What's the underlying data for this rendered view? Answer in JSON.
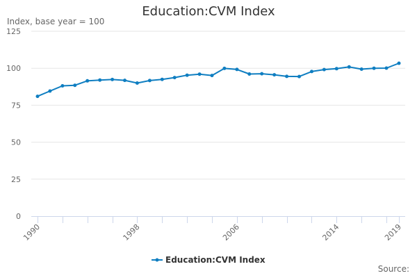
{
  "title": "Education:CVM Index",
  "y_axis_title": "Index, base year = 100",
  "source_label": "Source:",
  "legend": [
    {
      "label": "Education:CVM Index",
      "color": "#0f7ec1"
    }
  ],
  "colors": {
    "series": "#0f7ec1",
    "grid": "#e6e6e6",
    "axis": "#ccd6eb",
    "text": "#666666",
    "title": "#333333"
  },
  "chart_data": {
    "type": "line",
    "title": "Education:CVM Index",
    "xlabel": "",
    "ylabel": "Index, base year = 100",
    "ylim": [
      0,
      125
    ],
    "yticks": [
      0,
      25,
      50,
      75,
      100,
      125
    ],
    "xtick_labels": [
      "1990",
      "1998",
      "2006",
      "2014",
      "2019"
    ],
    "grid": true,
    "legend_position": "bottom",
    "x": [
      1990,
      1991,
      1992,
      1993,
      1994,
      1995,
      1996,
      1997,
      1998,
      1999,
      2000,
      2001,
      2002,
      2003,
      2004,
      2005,
      2006,
      2007,
      2008,
      2009,
      2010,
      2011,
      2012,
      2013,
      2014,
      2015,
      2016,
      2017,
      2018,
      2019
    ],
    "series": [
      {
        "name": "Education:CVM Index",
        "values": [
          81.0,
          84.6,
          88.1,
          88.5,
          91.5,
          92.0,
          92.4,
          91.8,
          90.0,
          91.7,
          92.5,
          93.7,
          95.3,
          96.0,
          95.1,
          99.9,
          99.2,
          96.1,
          96.3,
          95.6,
          94.5,
          94.4,
          97.8,
          99.1,
          99.7,
          100.9,
          99.4,
          100.0,
          100.1,
          103.4
        ]
      }
    ]
  }
}
